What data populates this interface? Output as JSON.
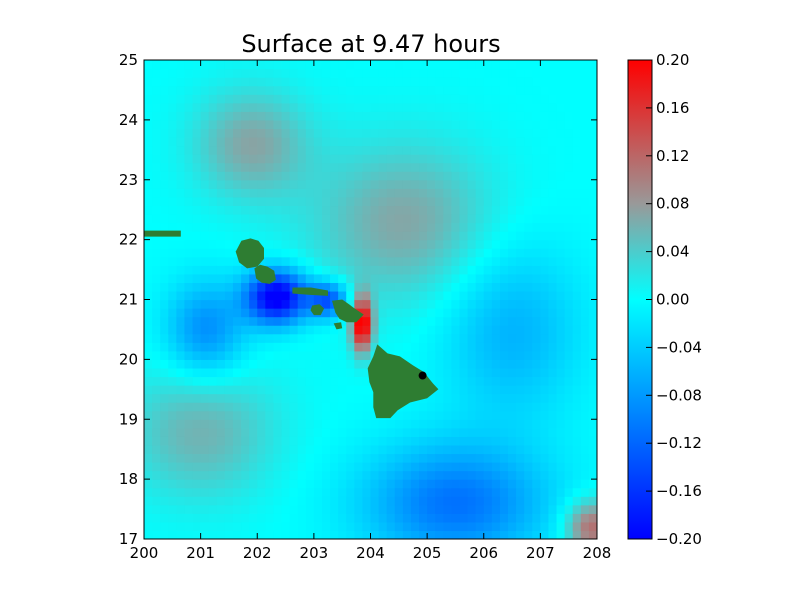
{
  "chart_data": {
    "type": "heatmap",
    "title": "Surface at 9.47 hours",
    "xlabel": "",
    "ylabel": "",
    "xlim": [
      200,
      208
    ],
    "ylim": [
      17,
      25
    ],
    "x_ticks": [
      "200",
      "201",
      "202",
      "203",
      "204",
      "205",
      "206",
      "207",
      "208"
    ],
    "y_ticks": [
      "17",
      "18",
      "19",
      "20",
      "21",
      "22",
      "23",
      "24",
      "25"
    ],
    "colorbar": {
      "min": -0.2,
      "max": 0.2,
      "ticks": [
        "−0.20",
        "−0.16",
        "−0.12",
        "−0.08",
        "−0.04",
        "0.00",
        "0.04",
        "0.08",
        "0.12",
        "0.16",
        "0.20"
      ],
      "colormap": [
        {
          "v": -0.2,
          "color": "#0000ff"
        },
        {
          "v": -0.12,
          "color": "#0066ff"
        },
        {
          "v": -0.04,
          "color": "#00ccff"
        },
        {
          "v": 0.0,
          "color": "#00ffff"
        },
        {
          "v": 0.08,
          "color": "#999999"
        },
        {
          "v": 0.2,
          "color": "#ff0000"
        }
      ]
    },
    "land_color": "#2e7d32",
    "marker": {
      "lon": 204.92,
      "lat": 19.73,
      "color": "#000000"
    },
    "islands": [
      {
        "name": "Kauai",
        "points": [
          [
            201.72,
            21.98
          ],
          [
            201.88,
            22.02
          ],
          [
            202.02,
            21.98
          ],
          [
            202.12,
            21.86
          ],
          [
            202.12,
            21.68
          ],
          [
            202.0,
            21.55
          ],
          [
            201.82,
            21.52
          ],
          [
            201.68,
            21.62
          ],
          [
            201.62,
            21.8
          ]
        ]
      },
      {
        "name": "Niihau",
        "points": [
          [
            200.0,
            22.15
          ],
          [
            200.65,
            22.15
          ],
          [
            200.65,
            22.05
          ],
          [
            200.0,
            22.05
          ]
        ]
      },
      {
        "name": "Oahu",
        "points": [
          [
            201.95,
            21.52
          ],
          [
            202.05,
            21.58
          ],
          [
            202.18,
            21.55
          ],
          [
            202.3,
            21.48
          ],
          [
            202.33,
            21.33
          ],
          [
            202.22,
            21.26
          ],
          [
            202.08,
            21.28
          ],
          [
            201.98,
            21.35
          ]
        ]
      },
      {
        "name": "Molokai",
        "points": [
          [
            202.62,
            21.2
          ],
          [
            202.95,
            21.2
          ],
          [
            203.25,
            21.15
          ],
          [
            203.25,
            21.06
          ],
          [
            202.9,
            21.08
          ],
          [
            202.62,
            21.1
          ]
        ]
      },
      {
        "name": "Lanai",
        "points": [
          [
            202.97,
            20.9
          ],
          [
            203.1,
            20.92
          ],
          [
            203.18,
            20.85
          ],
          [
            203.12,
            20.74
          ],
          [
            203.0,
            20.74
          ],
          [
            202.94,
            20.82
          ]
        ]
      },
      {
        "name": "Maui",
        "points": [
          [
            203.32,
            20.98
          ],
          [
            203.5,
            21.0
          ],
          [
            203.62,
            20.92
          ],
          [
            203.72,
            20.85
          ],
          [
            203.88,
            20.75
          ],
          [
            203.75,
            20.62
          ],
          [
            203.58,
            20.62
          ],
          [
            203.45,
            20.68
          ],
          [
            203.38,
            20.78
          ]
        ]
      },
      {
        "name": "Kahoolawe",
        "points": [
          [
            203.35,
            20.6
          ],
          [
            203.48,
            20.62
          ],
          [
            203.5,
            20.52
          ],
          [
            203.4,
            20.5
          ]
        ]
      },
      {
        "name": "Hawaii",
        "points": [
          [
            204.12,
            20.25
          ],
          [
            204.3,
            20.1
          ],
          [
            204.52,
            20.05
          ],
          [
            204.75,
            19.9
          ],
          [
            204.92,
            19.8
          ],
          [
            205.0,
            19.72
          ],
          [
            205.1,
            19.6
          ],
          [
            205.2,
            19.5
          ],
          [
            205.0,
            19.35
          ],
          [
            204.7,
            19.28
          ],
          [
            204.48,
            19.15
          ],
          [
            204.35,
            19.02
          ],
          [
            204.1,
            19.02
          ],
          [
            204.05,
            19.2
          ],
          [
            204.05,
            19.45
          ],
          [
            203.98,
            19.62
          ],
          [
            203.95,
            19.85
          ],
          [
            204.05,
            20.05
          ]
        ]
      }
    ],
    "field_sources": [
      {
        "lon": 202.35,
        "lat": 21.05,
        "amp": -0.22,
        "sx": 0.55,
        "sy": 0.45
      },
      {
        "lon": 203.25,
        "lat": 21.0,
        "amp": -0.14,
        "sx": 0.35,
        "sy": 0.3
      },
      {
        "lon": 203.85,
        "lat": 20.6,
        "amp": 0.22,
        "sx": 0.18,
        "sy": 0.45
      },
      {
        "lon": 204.6,
        "lat": 22.3,
        "amp": 0.07,
        "sx": 1.6,
        "sy": 1.3
      },
      {
        "lon": 201.9,
        "lat": 23.6,
        "amp": 0.07,
        "sx": 1.0,
        "sy": 0.9
      },
      {
        "lon": 201.0,
        "lat": 18.8,
        "amp": 0.06,
        "sx": 1.3,
        "sy": 1.1
      },
      {
        "lon": 205.5,
        "lat": 17.6,
        "amp": -0.11,
        "sx": 1.6,
        "sy": 1.0
      },
      {
        "lon": 207.9,
        "lat": 17.2,
        "amp": 0.12,
        "sx": 0.45,
        "sy": 0.45
      },
      {
        "lon": 206.5,
        "lat": 20.5,
        "amp": -0.06,
        "sx": 1.2,
        "sy": 1.5
      },
      {
        "lon": 201.1,
        "lat": 20.5,
        "amp": -0.09,
        "sx": 0.7,
        "sy": 0.8
      }
    ]
  }
}
